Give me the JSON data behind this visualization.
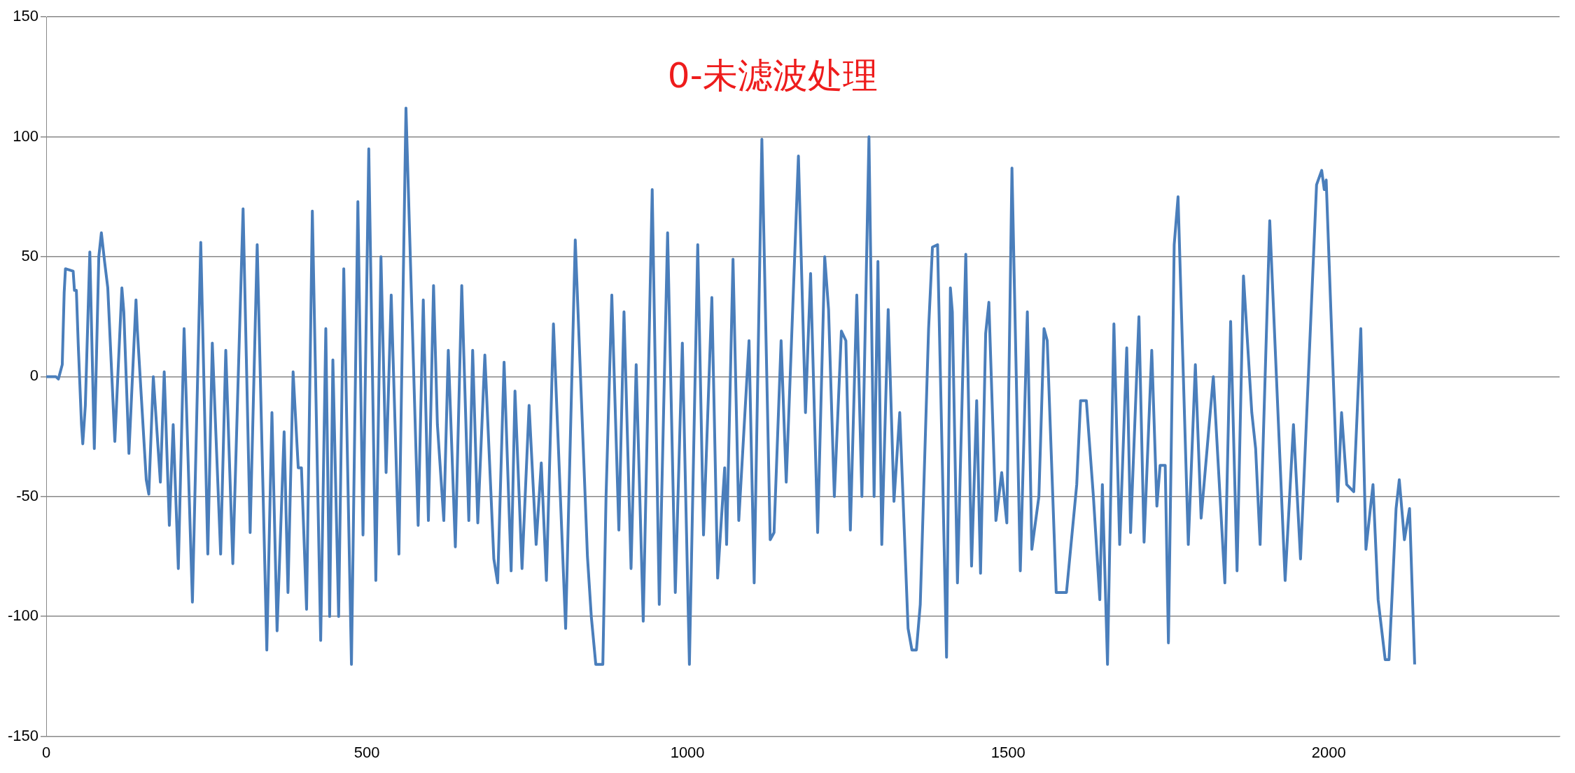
{
  "chart_data": {
    "type": "line",
    "title": "0-未滤波处理",
    "xlim": [
      0,
      2360
    ],
    "xticks": [
      0,
      500,
      1000,
      1500,
      2000
    ],
    "ylim": [
      -150,
      150
    ],
    "yticks": [
      -150,
      -100,
      -50,
      0,
      50,
      100,
      150
    ],
    "grid": "y",
    "legend": false,
    "marker": "none",
    "line_style": "solid",
    "series": [
      {
        "color": "#4a7ebb",
        "x": [
          0,
          15,
          19,
          25,
          28,
          30,
          42,
          44,
          47,
          50,
          55,
          57,
          61,
          68,
          75,
          82,
          86,
          91,
          96,
          107,
          118,
          121,
          129,
          140,
          142,
          156,
          160,
          167,
          178,
          184,
          192,
          198,
          206,
          215,
          228,
          241,
          252,
          259,
          272,
          280,
          291,
          307,
          318,
          329,
          344,
          352,
          360,
          371,
          377,
          385,
          393,
          398,
          406,
          415,
          428,
          436,
          442,
          447,
          456,
          464,
          476,
          486,
          494,
          503,
          514,
          522,
          530,
          538,
          550,
          561,
          580,
          588,
          596,
          604,
          610,
          620,
          627,
          638,
          648,
          659,
          665,
          673,
          684,
          698,
          704,
          714,
          725,
          731,
          742,
          753,
          764,
          772,
          780,
          791,
          810,
          825,
          844,
          850,
          857,
          868,
          873,
          882,
          893,
          901,
          912,
          920,
          931,
          945,
          956,
          969,
          981,
          992,
          1003,
          1016,
          1025,
          1038,
          1047,
          1058,
          1061,
          1071,
          1080,
          1096,
          1104,
          1116,
          1129,
          1135,
          1146,
          1154,
          1173,
          1184,
          1192,
          1203,
          1214,
          1220,
          1229,
          1240,
          1247,
          1254,
          1264,
          1272,
          1283,
          1291,
          1297,
          1303,
          1313,
          1322,
          1331,
          1344,
          1350,
          1357,
          1363,
          1376,
          1382,
          1390,
          1404,
          1410,
          1413,
          1421,
          1434,
          1443,
          1451,
          1457,
          1465,
          1470,
          1481,
          1490,
          1498,
          1506,
          1519,
          1530,
          1537,
          1548,
          1556,
          1561,
          1575,
          1591,
          1607,
          1613,
          1622,
          1633,
          1643,
          1647,
          1655,
          1665,
          1674,
          1685,
          1691,
          1704,
          1712,
          1724,
          1732,
          1737,
          1745,
          1750,
          1759,
          1765,
          1781,
          1792,
          1801,
          1820,
          1838,
          1847,
          1857,
          1867,
          1880,
          1886,
          1893,
          1908,
          1932,
          1945,
          1956,
          1981,
          1989,
          1993,
          1996,
          2014,
          2020,
          2028,
          2039,
          2050,
          2058,
          2069,
          2077,
          2088,
          2094,
          2099,
          2105,
          2110,
          2118,
          2126,
          2134
        ],
        "values": [
          0,
          0,
          -1,
          5,
          35,
          45,
          44,
          36,
          36,
          13,
          -20,
          -28,
          -12,
          52,
          -30,
          50,
          60,
          48,
          37,
          -27,
          37,
          27,
          -32,
          32,
          20,
          -43,
          -49,
          0,
          -44,
          2,
          -62,
          -20,
          -80,
          20,
          -94,
          56,
          -74,
          14,
          -74,
          11,
          -78,
          70,
          -65,
          55,
          -114,
          -15,
          -106,
          -23,
          -90,
          2,
          -38,
          -38,
          -97,
          69,
          -110,
          20,
          -100,
          7,
          -100,
          45,
          -120,
          73,
          -66,
          95,
          -85,
          50,
          -40,
          34,
          -74,
          112,
          -62,
          32,
          -60,
          38,
          -20,
          -60,
          11,
          -71,
          38,
          -60,
          11,
          -61,
          9,
          -76,
          -86,
          6,
          -81,
          -6,
          -80,
          -12,
          -70,
          -36,
          -85,
          22,
          -105,
          57,
          -75,
          -100,
          -120,
          -120,
          -50,
          34,
          -64,
          27,
          -80,
          5,
          -102,
          78,
          -95,
          60,
          -90,
          14,
          -120,
          55,
          -66,
          33,
          -84,
          -38,
          -70,
          49,
          -60,
          15,
          -86,
          99,
          -68,
          -65,
          15,
          -44,
          92,
          -15,
          43,
          -65,
          50,
          28,
          -50,
          19,
          15,
          -64,
          34,
          -50,
          100,
          -50,
          48,
          -70,
          28,
          -52,
          -15,
          -105,
          -114,
          -114,
          -95,
          20,
          54,
          55,
          -117,
          37,
          27,
          -86,
          51,
          -79,
          -10,
          -82,
          18,
          31,
          -60,
          -40,
          -61,
          87,
          -81,
          27,
          -72,
          -50,
          20,
          15,
          -90,
          -90,
          -45,
          -10,
          -10,
          -50,
          -93,
          -45,
          -120,
          22,
          -70,
          12,
          -65,
          25,
          -69,
          11,
          -54,
          -37,
          -37,
          -111,
          55,
          75,
          -70,
          5,
          -59,
          0,
          -86,
          23,
          -81,
          42,
          -15,
          -30,
          -70,
          65,
          -85,
          -20,
          -76,
          80,
          86,
          78,
          82,
          -52,
          -15,
          -45,
          -48,
          20,
          -72,
          -45,
          -93,
          -118,
          -118,
          -90,
          -55,
          -43,
          -68,
          -55,
          -120
        ]
      }
    ]
  }
}
